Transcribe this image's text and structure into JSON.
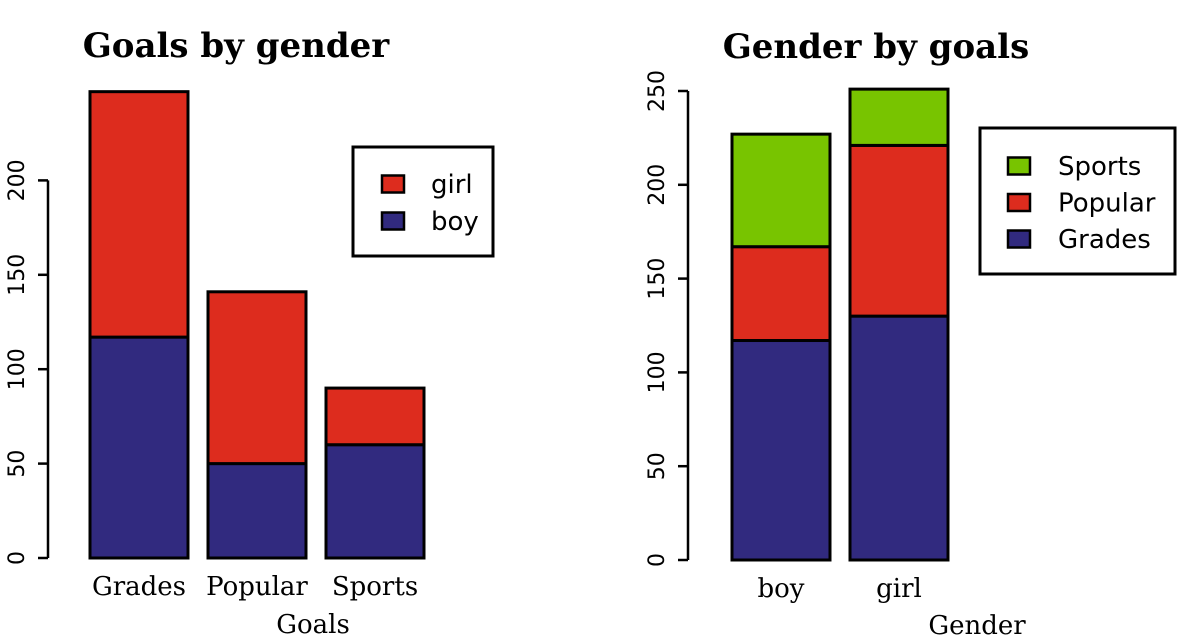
{
  "chart_data": [
    {
      "type": "bar",
      "stacked": true,
      "title": "Goals by gender",
      "xlabel": "Goals",
      "ylabel": "",
      "categories": [
        "Grades",
        "Popular",
        "Sports"
      ],
      "series": [
        {
          "name": "boy",
          "values": [
            117,
            50,
            60
          ],
          "color": "#312a7f"
        },
        {
          "name": "girl",
          "values": [
            130,
            91,
            30
          ],
          "color": "#dd2c1e"
        }
      ],
      "ylim": [
        0,
        250
      ],
      "yticks": [
        0,
        50,
        100,
        150,
        200
      ],
      "legend": {
        "position": "top-right",
        "order": [
          "girl",
          "boy"
        ]
      },
      "grid": false
    },
    {
      "type": "bar",
      "stacked": true,
      "title": "Gender by goals",
      "xlabel": "Gender",
      "ylabel": "",
      "categories": [
        "boy",
        "girl"
      ],
      "series": [
        {
          "name": "Grades",
          "values": [
            117,
            130
          ],
          "color": "#312a7f"
        },
        {
          "name": "Popular",
          "values": [
            50,
            91
          ],
          "color": "#dd2c1e"
        },
        {
          "name": "Sports",
          "values": [
            60,
            30
          ],
          "color": "#78c400"
        }
      ],
      "ylim": [
        0,
        250
      ],
      "yticks": [
        0,
        50,
        100,
        150,
        200,
        250
      ],
      "legend": {
        "position": "top-right",
        "order": [
          "Sports",
          "Popular",
          "Grades"
        ]
      },
      "grid": false
    }
  ]
}
